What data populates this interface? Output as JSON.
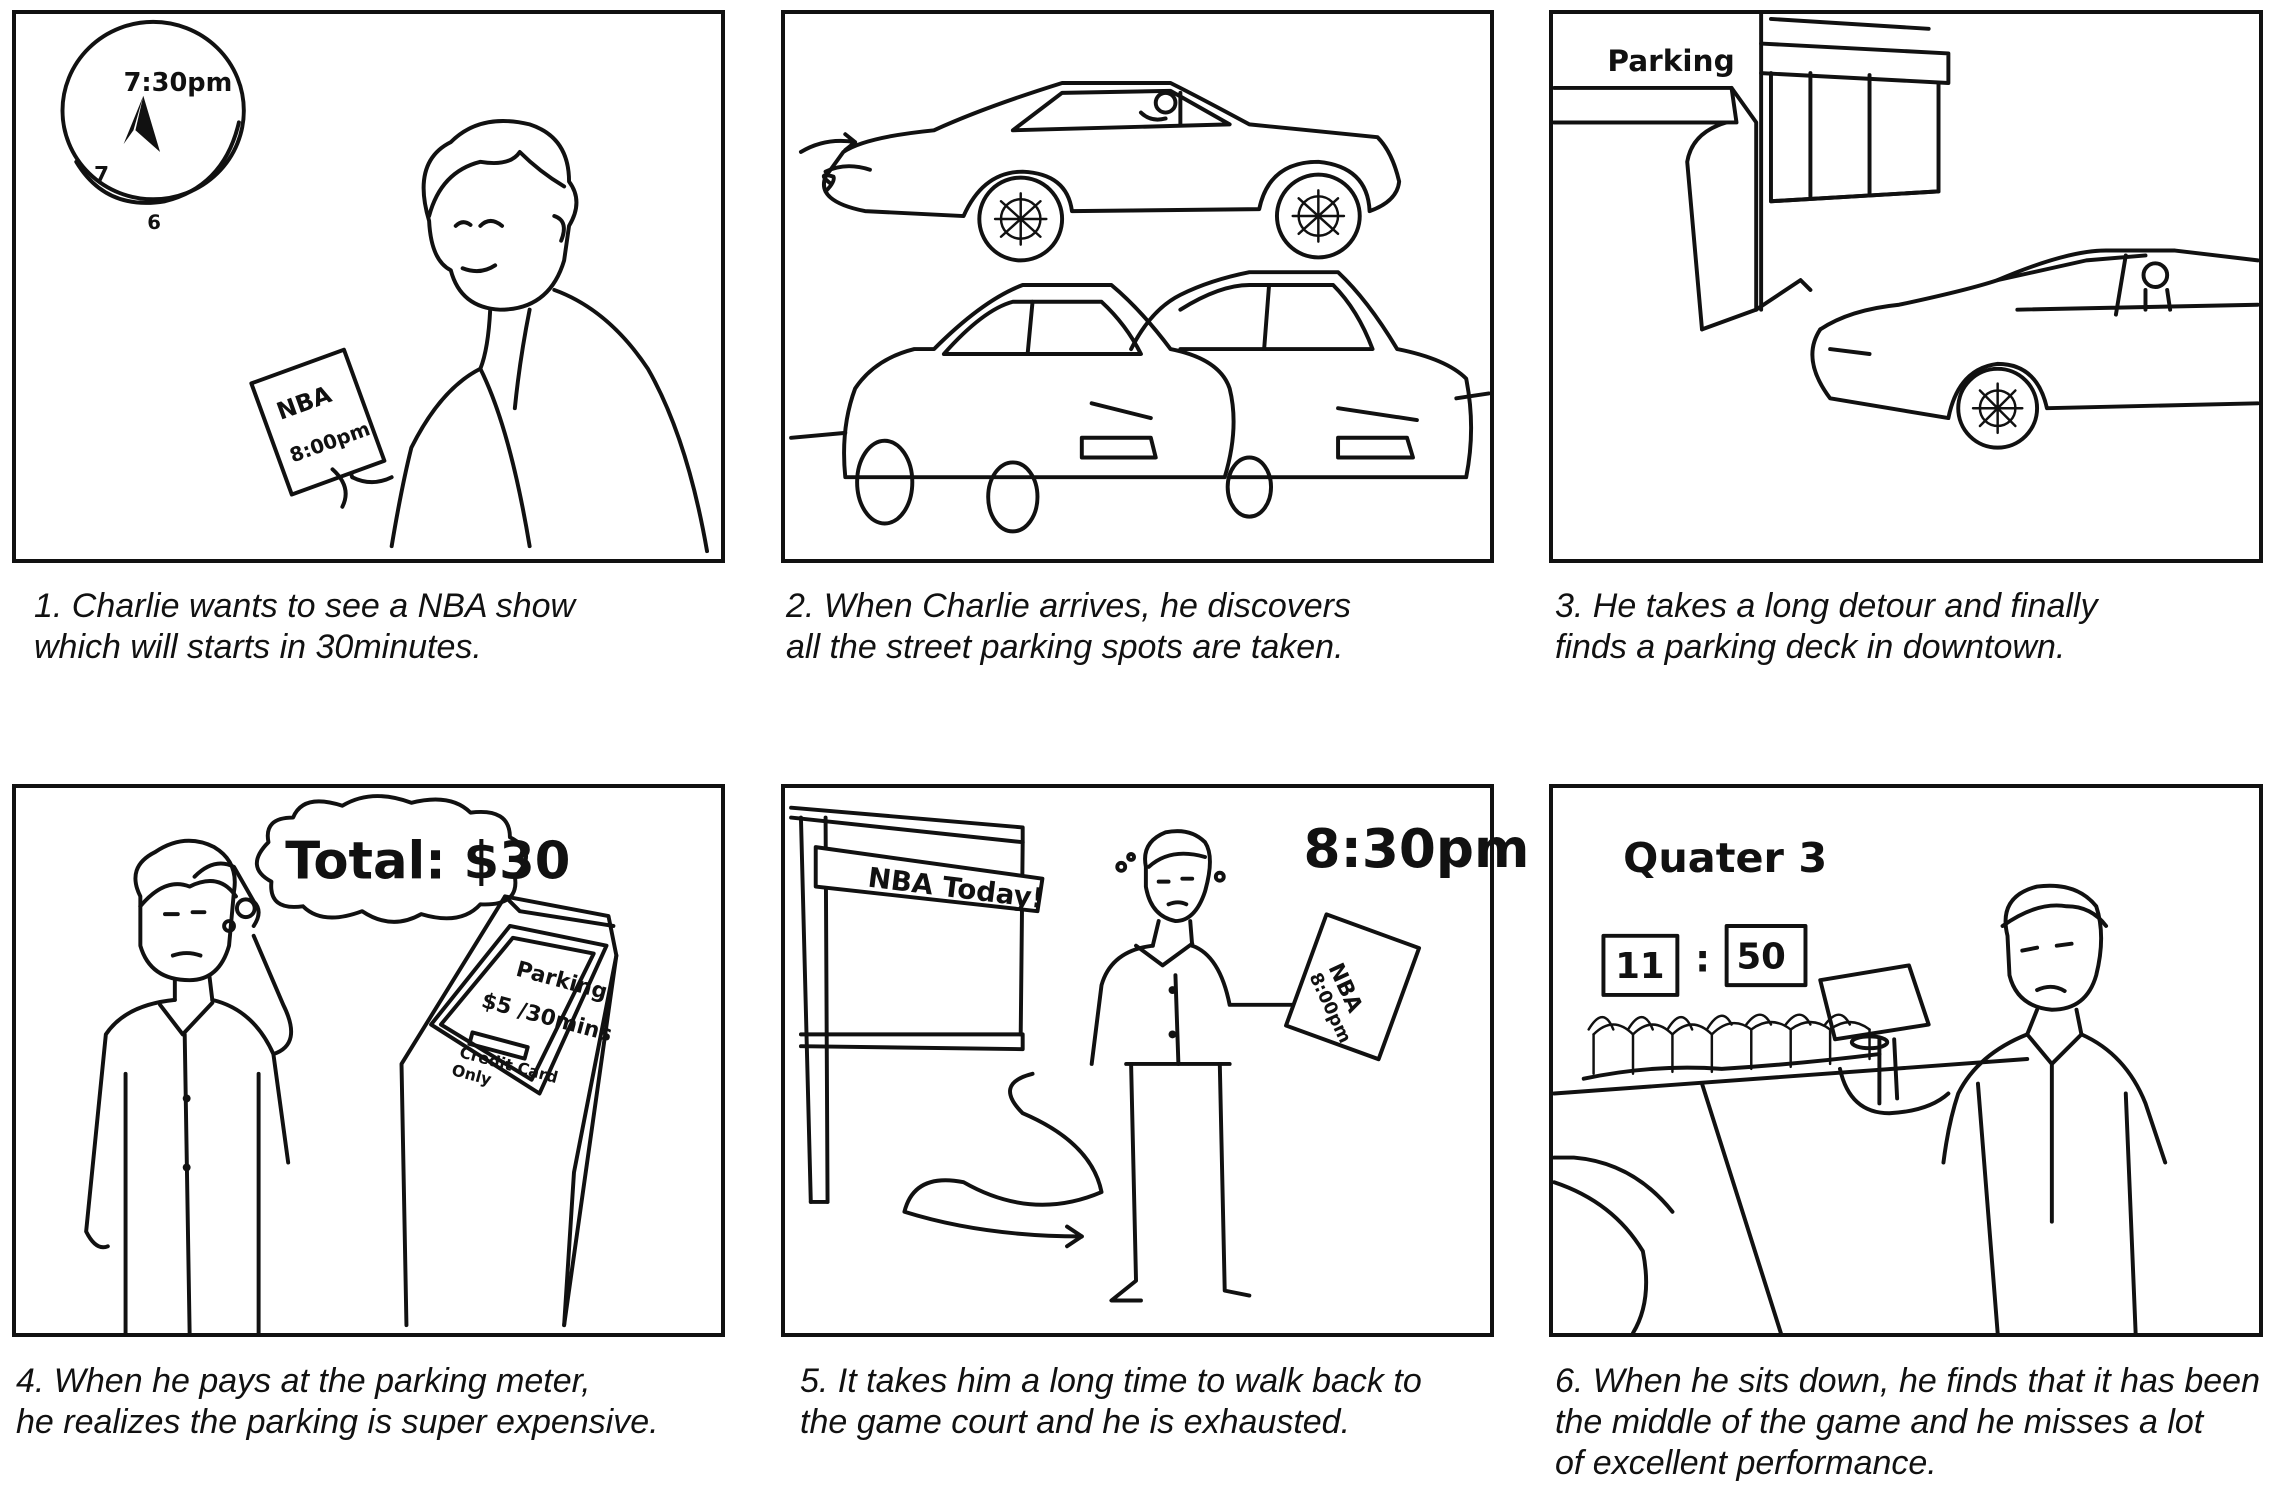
{
  "panels": [
    {
      "caption_lines": [
        "1. Charlie wants to see a NBA show",
        "which will starts in 30minutes."
      ],
      "clock_time": "7:30pm",
      "clock_numeral_7": "7",
      "clock_numeral_6": "6",
      "ticket_title": "NBA",
      "ticket_time": "8:00pm"
    },
    {
      "caption_lines": [
        "2. When Charlie arrives, he discovers",
        "all the street parking spots are taken."
      ]
    },
    {
      "caption_lines": [
        "3. He takes a long detour and finally",
        "finds a parking deck in downtown."
      ],
      "sign_text": "Parking"
    },
    {
      "caption_lines": [
        "4. When he pays at the parking meter,",
        "he realizes the parking is super expensive."
      ],
      "bubble_text": "Total: $30",
      "meter_title": "Parking",
      "meter_rate": "$5 /30mins",
      "meter_note_line1": "Credit Card",
      "meter_note_line2": "Only"
    },
    {
      "caption_lines": [
        "5. It takes him a long time to walk back to",
        "the game court and he is exhausted."
      ],
      "banner_text": "NBA Today!",
      "time_text": "8:30pm",
      "ticket_title": "NBA",
      "ticket_time": "8:00pm"
    },
    {
      "caption_lines": [
        "6. When he sits down, he finds that it has been",
        "the middle of the game and he misses a lot",
        "of excellent performance."
      ],
      "quarter_text": "Quater 3",
      "score_minutes": "11",
      "score_separator": ":",
      "score_seconds": "50"
    }
  ]
}
